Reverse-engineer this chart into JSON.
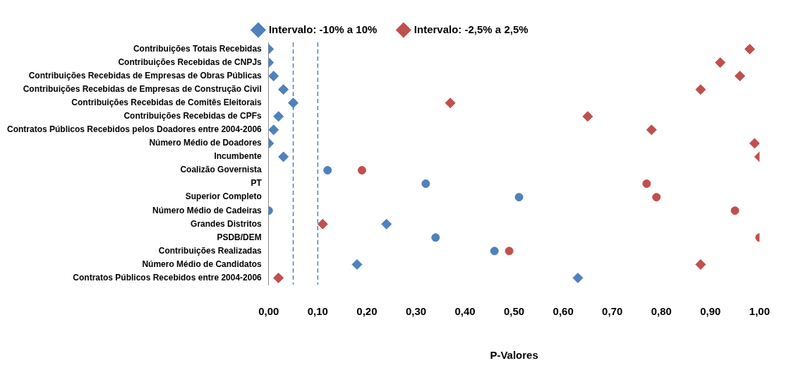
{
  "chart_data": {
    "type": "scatter",
    "xlabel": "P-Valores",
    "categories": [
      "Contribuições Totais Recebidas",
      "Contribuições Recebidas de CNPJs",
      "Contribuições Recebidas de Empresas de Obras Públicas",
      "Contribuições Recebidas de Empresas de Construção Civil",
      "Contribuições Recebidas de Comitês Eleitorais",
      "Contribuições Recebidas de CPFs",
      "Contratos Públicos Recebidos pelos Doadores entre 2004-2006",
      "Número Médio de Doadores",
      "Incumbente",
      "Coalizão Governista",
      "PT",
      "Superior Completo",
      "Número Médio de Cadeiras",
      "Grandes Distritos",
      "PSDB/DEM",
      "Contribuições Realizadas",
      "Número Médio de Candidatos",
      "Contratos Públicos Recebidos entre 2004-2006"
    ],
    "orientation": "horizontal",
    "series": [
      {
        "name": "Intervalo: -10% a 10%",
        "color": "#4f81bd",
        "marker": "diamond",
        "values": [
          0.0,
          0.0,
          0.01,
          0.03,
          0.05,
          0.02,
          0.01,
          0.0,
          0.03,
          null,
          null,
          null,
          null,
          0.24,
          null,
          null,
          0.18,
          0.63
        ]
      },
      {
        "color": "#4f81bd",
        "marker": "circle",
        "values": [
          null,
          null,
          null,
          null,
          null,
          null,
          null,
          null,
          null,
          0.12,
          0.32,
          0.51,
          0.0,
          null,
          0.34,
          0.46,
          null,
          null
        ]
      },
      {
        "name": "Intervalo: -2,5% a 2,5%",
        "color": "#c0504d",
        "marker": "diamond",
        "values": [
          0.98,
          0.92,
          0.96,
          0.88,
          0.37,
          0.65,
          0.78,
          0.99,
          1.0,
          null,
          null,
          null,
          null,
          0.11,
          null,
          null,
          0.88,
          0.02
        ]
      },
      {
        "color": "#c0504d",
        "marker": "circle",
        "values": [
          null,
          null,
          null,
          null,
          null,
          null,
          null,
          null,
          null,
          0.19,
          0.77,
          0.79,
          0.95,
          null,
          1.0,
          0.49,
          null,
          null
        ]
      }
    ],
    "xlim": [
      0,
      1
    ],
    "xticks": [
      {
        "value": 0,
        "label": "0,00"
      },
      {
        "value": 0.1,
        "label": "0,10"
      },
      {
        "value": 0.2,
        "label": "0,20"
      },
      {
        "value": 0.3,
        "label": "0,30"
      },
      {
        "value": 0.4,
        "label": "0,40"
      },
      {
        "value": 0.5,
        "label": "0,50"
      },
      {
        "value": 0.6,
        "label": "0,60"
      },
      {
        "value": 0.7,
        "label": "0,70"
      },
      {
        "value": 0.8,
        "label": "0,80"
      },
      {
        "value": 0.9,
        "label": "0,90"
      },
      {
        "value": 1,
        "label": "1,00"
      }
    ],
    "ref_lines": [
      {
        "axis": "x",
        "value": 0.05,
        "color": "#4f81bd",
        "line_style": "dashed"
      },
      {
        "axis": "x",
        "value": 0.1,
        "color": "#4f81bd",
        "line_style": "dashed"
      }
    ],
    "legend": "top",
    "grid": false
  }
}
